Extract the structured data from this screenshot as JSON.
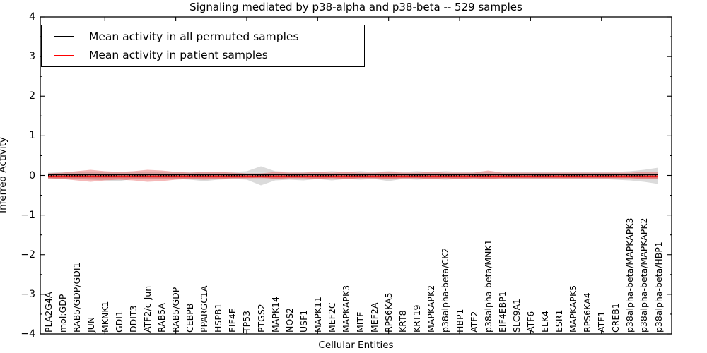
{
  "figure": {
    "background": "#ffffff"
  },
  "chart_data": {
    "type": "line",
    "title": "Signaling mediated by p38-alpha and p38-beta -- 529 samples",
    "xlabel": "Cellular Entities",
    "ylabel": "Inferred Activity",
    "ylim": [
      -4,
      4
    ],
    "ytick_labels": [
      "4",
      "3",
      "2",
      "1",
      "0",
      "−1",
      "−2",
      "−3",
      "−4"
    ],
    "ytick_values": [
      4,
      3,
      2,
      1,
      0,
      -1,
      -2,
      -3,
      -4
    ],
    "grid": false,
    "legend_position": "upper-left",
    "entities": [
      "PLA2G4A",
      "mol:GDP",
      "RAB5/GDP/GDI1",
      "JUN",
      "MKNK1",
      "GDI1",
      "DDIT3",
      "ATF2/c-Jun",
      "RAB5A",
      "RAB5/GDP",
      "CEBPB",
      "PPARGC1A",
      "HSPB1",
      "EIF4E",
      "TP53",
      "PTGS2",
      "MAPK14",
      "NOS2",
      "USF1",
      "MAPK11",
      "MEF2C",
      "MAPKAPK3",
      "MITF",
      "MEF2A",
      "RPS6KA5",
      "KRT8",
      "KRT19",
      "MAPKAPK2",
      "p38alpha-beta/CK2",
      "HBP1",
      "ATF2",
      "p38alpha-beta/MNK1",
      "EIF4EBP1",
      "SLC9A1",
      "ATF6",
      "ELK4",
      "ESR1",
      "MAPKAPK5",
      "RPS6KA4",
      "ATF1",
      "CREB1",
      "p38alpha-beta/MAPKAPK3",
      "p38alpha-beta/MAPKAPK2",
      "p38alpha-beta/HBP1"
    ],
    "series": [
      {
        "name": "Mean activity in all permuted samples",
        "color": "#000000",
        "line_style": "solid",
        "mean": 0.018,
        "band_color": "#999999",
        "band_opacity": 0.35,
        "band_upper": [
          0.071,
          0.089,
          0.089,
          0.089,
          0.089,
          0.089,
          0.089,
          0.089,
          0.089,
          0.089,
          0.089,
          0.089,
          0.089,
          0.089,
          0.107,
          0.232,
          0.107,
          0.089,
          0.089,
          0.089,
          0.107,
          0.089,
          0.107,
          0.089,
          0.107,
          0.089,
          0.107,
          0.089,
          0.107,
          0.089,
          0.089,
          0.089,
          0.089,
          0.089,
          0.089,
          0.089,
          0.089,
          0.089,
          0.089,
          0.089,
          0.089,
          0.107,
          0.143,
          0.196
        ],
        "band_lower": [
          -0.089,
          -0.089,
          -0.089,
          -0.107,
          -0.125,
          -0.143,
          -0.089,
          -0.089,
          -0.089,
          -0.089,
          -0.107,
          -0.143,
          -0.107,
          -0.089,
          -0.107,
          -0.249,
          -0.125,
          -0.107,
          -0.125,
          -0.089,
          -0.125,
          -0.089,
          -0.107,
          -0.089,
          -0.143,
          -0.089,
          -0.107,
          -0.089,
          -0.107,
          -0.089,
          -0.089,
          -0.089,
          -0.089,
          -0.089,
          -0.089,
          -0.089,
          -0.089,
          -0.089,
          -0.089,
          -0.089,
          -0.107,
          -0.125,
          -0.16,
          -0.214
        ]
      },
      {
        "name": "Mean activity in patient samples",
        "color": "#ff0000",
        "line_style": "solid",
        "mean": -0.027,
        "band_color": "#e03030",
        "band_opacity": 0.35,
        "band_upper": [
          0.053,
          0.071,
          0.107,
          0.143,
          0.107,
          0.089,
          0.107,
          0.143,
          0.125,
          0.089,
          0.071,
          0.089,
          0.089,
          0.071,
          0.053,
          0.053,
          0.089,
          0.071,
          0.071,
          0.089,
          0.071,
          0.089,
          0.071,
          0.071,
          0.089,
          0.071,
          0.071,
          0.089,
          0.071,
          0.071,
          0.071,
          0.125,
          0.071,
          0.071,
          0.071,
          0.071,
          0.071,
          0.071,
          0.071,
          0.071,
          0.071,
          0.071,
          0.089,
          0.089
        ],
        "band_lower": [
          -0.071,
          -0.089,
          -0.125,
          -0.16,
          -0.125,
          -0.107,
          -0.125,
          -0.16,
          -0.143,
          -0.107,
          -0.089,
          -0.107,
          -0.089,
          -0.071,
          -0.071,
          -0.053,
          -0.089,
          -0.071,
          -0.071,
          -0.089,
          -0.071,
          -0.089,
          -0.071,
          -0.071,
          -0.089,
          -0.071,
          -0.071,
          -0.089,
          -0.071,
          -0.089,
          -0.071,
          -0.089,
          -0.071,
          -0.071,
          -0.071,
          -0.071,
          -0.071,
          -0.071,
          -0.071,
          -0.071,
          -0.071,
          -0.071,
          -0.089,
          -0.089
        ]
      }
    ],
    "zero_line": {
      "value": 0,
      "style": "dotted",
      "color": "#000000"
    }
  }
}
